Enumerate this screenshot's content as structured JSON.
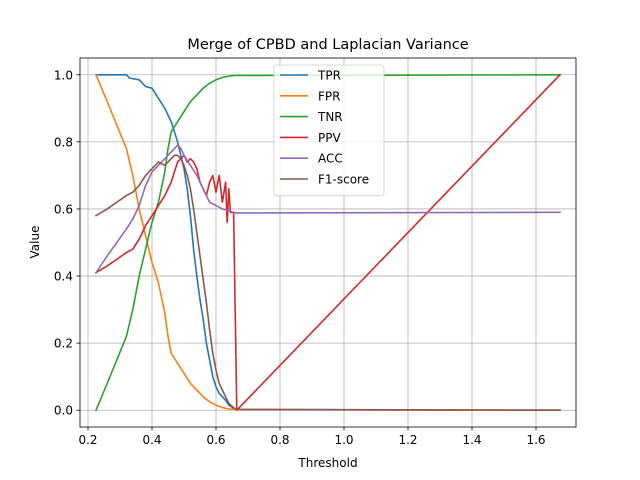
{
  "chart_data": {
    "type": "line",
    "title": "Merge of CPBD and Laplacian Variance",
    "xlabel": "Threshold",
    "ylabel": "Value",
    "xlim": [
      0.175,
      1.725
    ],
    "ylim": [
      -0.05,
      1.05
    ],
    "xticks": [
      0.2,
      0.4,
      0.6,
      0.8,
      1.0,
      1.2,
      1.4,
      1.6
    ],
    "xtick_labels": [
      "0.2",
      "0.4",
      "0.6",
      "0.8",
      "1.0",
      "1.2",
      "1.4",
      "1.6"
    ],
    "yticks": [
      0.0,
      0.2,
      0.4,
      0.6,
      0.8,
      1.0
    ],
    "ytick_labels": [
      "0.0",
      "0.2",
      "0.4",
      "0.6",
      "0.8",
      "1.0"
    ],
    "grid": true,
    "legend_position": "top-center",
    "series": [
      {
        "name": "TPR",
        "color": "#1f77b4",
        "points": [
          [
            0.225,
            1.0
          ],
          [
            0.32,
            1.0
          ],
          [
            0.33,
            0.99
          ],
          [
            0.36,
            0.985
          ],
          [
            0.38,
            0.965
          ],
          [
            0.4,
            0.96
          ],
          [
            0.41,
            0.945
          ],
          [
            0.42,
            0.93
          ],
          [
            0.44,
            0.9
          ],
          [
            0.46,
            0.86
          ],
          [
            0.47,
            0.83
          ],
          [
            0.48,
            0.8
          ],
          [
            0.49,
            0.76
          ],
          [
            0.5,
            0.72
          ],
          [
            0.51,
            0.66
          ],
          [
            0.52,
            0.58
          ],
          [
            0.53,
            0.48
          ],
          [
            0.54,
            0.4
          ],
          [
            0.55,
            0.33
          ],
          [
            0.56,
            0.27
          ],
          [
            0.57,
            0.2
          ],
          [
            0.58,
            0.15
          ],
          [
            0.59,
            0.1
          ],
          [
            0.6,
            0.07
          ],
          [
            0.61,
            0.05
          ],
          [
            0.62,
            0.04
          ],
          [
            0.63,
            0.03
          ],
          [
            0.64,
            0.015
          ],
          [
            0.66,
            0.003
          ],
          [
            0.68,
            0.002
          ],
          [
            1.675,
            0.0
          ]
        ]
      },
      {
        "name": "FPR",
        "color": "#ff7f0e",
        "points": [
          [
            0.225,
            1.0
          ],
          [
            0.26,
            0.92
          ],
          [
            0.29,
            0.85
          ],
          [
            0.32,
            0.78
          ],
          [
            0.34,
            0.7
          ],
          [
            0.36,
            0.6
          ],
          [
            0.38,
            0.52
          ],
          [
            0.4,
            0.44
          ],
          [
            0.42,
            0.38
          ],
          [
            0.44,
            0.29
          ],
          [
            0.45,
            0.22
          ],
          [
            0.46,
            0.17
          ],
          [
            0.48,
            0.14
          ],
          [
            0.5,
            0.11
          ],
          [
            0.52,
            0.08
          ],
          [
            0.54,
            0.06
          ],
          [
            0.56,
            0.04
          ],
          [
            0.58,
            0.025
          ],
          [
            0.6,
            0.015
          ],
          [
            0.62,
            0.008
          ],
          [
            0.64,
            0.004
          ],
          [
            0.66,
            0.002
          ],
          [
            1.675,
            0.0
          ]
        ]
      },
      {
        "name": "TNR",
        "color": "#2ca02c",
        "points": [
          [
            0.225,
            0.0
          ],
          [
            0.26,
            0.08
          ],
          [
            0.29,
            0.15
          ],
          [
            0.32,
            0.22
          ],
          [
            0.34,
            0.3
          ],
          [
            0.36,
            0.4
          ],
          [
            0.38,
            0.48
          ],
          [
            0.4,
            0.56
          ],
          [
            0.42,
            0.62
          ],
          [
            0.44,
            0.71
          ],
          [
            0.45,
            0.78
          ],
          [
            0.46,
            0.83
          ],
          [
            0.48,
            0.86
          ],
          [
            0.5,
            0.89
          ],
          [
            0.52,
            0.92
          ],
          [
            0.54,
            0.94
          ],
          [
            0.56,
            0.96
          ],
          [
            0.58,
            0.975
          ],
          [
            0.6,
            0.985
          ],
          [
            0.62,
            0.992
          ],
          [
            0.64,
            0.996
          ],
          [
            0.66,
            0.998
          ],
          [
            1.675,
            1.0
          ]
        ]
      },
      {
        "name": "PPV",
        "color": "#d62728",
        "points": [
          [
            0.225,
            0.41
          ],
          [
            0.26,
            0.43
          ],
          [
            0.29,
            0.45
          ],
          [
            0.32,
            0.47
          ],
          [
            0.34,
            0.48
          ],
          [
            0.36,
            0.51
          ],
          [
            0.38,
            0.55
          ],
          [
            0.4,
            0.58
          ],
          [
            0.42,
            0.61
          ],
          [
            0.44,
            0.64
          ],
          [
            0.46,
            0.68
          ],
          [
            0.47,
            0.71
          ],
          [
            0.48,
            0.74
          ],
          [
            0.49,
            0.75
          ],
          [
            0.5,
            0.76
          ],
          [
            0.51,
            0.74
          ],
          [
            0.52,
            0.75
          ],
          [
            0.53,
            0.74
          ],
          [
            0.54,
            0.72
          ],
          [
            0.55,
            0.68
          ],
          [
            0.56,
            0.66
          ],
          [
            0.57,
            0.64
          ],
          [
            0.58,
            0.68
          ],
          [
            0.59,
            0.7
          ],
          [
            0.6,
            0.65
          ],
          [
            0.61,
            0.7
          ],
          [
            0.62,
            0.62
          ],
          [
            0.63,
            0.68
          ],
          [
            0.635,
            0.56
          ],
          [
            0.64,
            0.66
          ],
          [
            0.645,
            0.59
          ],
          [
            0.655,
            0.59
          ],
          [
            0.665,
            0.0
          ],
          [
            1.675,
            1.0
          ]
        ]
      },
      {
        "name": "ACC",
        "color": "#9467bd",
        "points": [
          [
            0.225,
            0.41
          ],
          [
            0.26,
            0.46
          ],
          [
            0.29,
            0.5
          ],
          [
            0.32,
            0.54
          ],
          [
            0.34,
            0.57
          ],
          [
            0.36,
            0.61
          ],
          [
            0.38,
            0.67
          ],
          [
            0.4,
            0.71
          ],
          [
            0.42,
            0.73
          ],
          [
            0.44,
            0.75
          ],
          [
            0.46,
            0.77
          ],
          [
            0.47,
            0.78
          ],
          [
            0.48,
            0.79
          ],
          [
            0.49,
            0.78
          ],
          [
            0.5,
            0.76
          ],
          [
            0.52,
            0.73
          ],
          [
            0.54,
            0.7
          ],
          [
            0.56,
            0.66
          ],
          [
            0.58,
            0.62
          ],
          [
            0.6,
            0.61
          ],
          [
            0.62,
            0.6
          ],
          [
            0.64,
            0.595
          ],
          [
            0.66,
            0.588
          ],
          [
            0.7,
            0.588
          ],
          [
            1.675,
            0.59
          ]
        ]
      },
      {
        "name": "F1-score",
        "color": "#8c564b",
        "points": [
          [
            0.225,
            0.58
          ],
          [
            0.26,
            0.6
          ],
          [
            0.29,
            0.62
          ],
          [
            0.32,
            0.64
          ],
          [
            0.34,
            0.65
          ],
          [
            0.36,
            0.67
          ],
          [
            0.38,
            0.7
          ],
          [
            0.4,
            0.72
          ],
          [
            0.42,
            0.74
          ],
          [
            0.44,
            0.73
          ],
          [
            0.46,
            0.75
          ],
          [
            0.47,
            0.76
          ],
          [
            0.48,
            0.76
          ],
          [
            0.49,
            0.75
          ],
          [
            0.5,
            0.73
          ],
          [
            0.51,
            0.7
          ],
          [
            0.52,
            0.66
          ],
          [
            0.53,
            0.6
          ],
          [
            0.54,
            0.53
          ],
          [
            0.55,
            0.46
          ],
          [
            0.56,
            0.39
          ],
          [
            0.57,
            0.32
          ],
          [
            0.58,
            0.24
          ],
          [
            0.59,
            0.17
          ],
          [
            0.6,
            0.12
          ],
          [
            0.61,
            0.08
          ],
          [
            0.62,
            0.06
          ],
          [
            0.63,
            0.04
          ],
          [
            0.64,
            0.02
          ],
          [
            0.66,
            0.004
          ],
          [
            0.68,
            0.002
          ],
          [
            1.675,
            0.0
          ]
        ]
      }
    ]
  }
}
